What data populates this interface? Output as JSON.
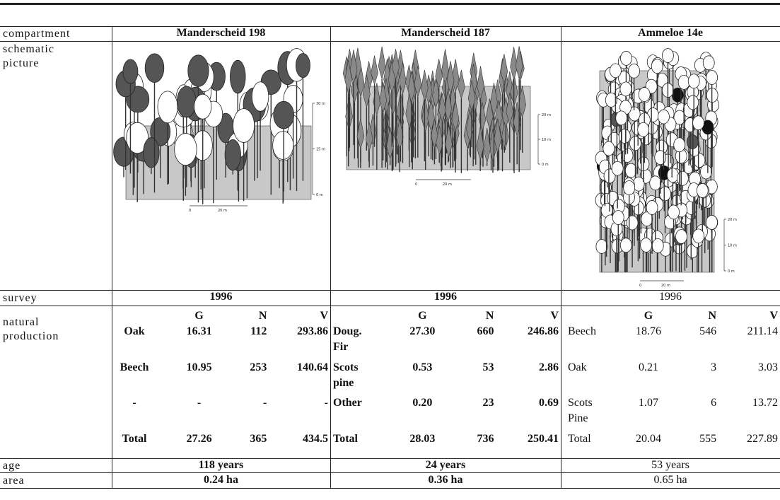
{
  "header": {
    "label": "compartment",
    "columns": [
      "Manderscheid 198",
      "Manderscheid 187",
      "Ammeloe 14e"
    ]
  },
  "picture": {
    "label": "schematic picture",
    "scales": [
      {
        "y": [
          "30 m",
          "15 m",
          "0 m"
        ],
        "x": [
          "0",
          "20 m"
        ]
      },
      {
        "y": [
          "20 m",
          "10 m",
          "0 m"
        ],
        "x": [
          "0",
          "20 m"
        ]
      },
      {
        "y": [
          "20 m",
          "10 m",
          "0 m"
        ],
        "x": [
          "0",
          "20 m"
        ]
      }
    ]
  },
  "survey": {
    "label": "survey",
    "values": [
      "1996",
      "1996",
      "1996"
    ]
  },
  "production": {
    "label": "natural production",
    "columns": [
      "G",
      "N",
      "V"
    ],
    "stands": [
      [
        [
          "Oak",
          "16.31",
          "112",
          "293.86"
        ],
        [
          "Beech",
          "10.95",
          "253",
          "140.64"
        ],
        [
          "-",
          "-",
          "-",
          "-"
        ],
        [
          "Total",
          "27.26",
          "365",
          "434.5"
        ]
      ],
      [
        [
          "Doug. Fir",
          "27.30",
          "660",
          "246.86"
        ],
        [
          "Scots pine",
          "0.53",
          "53",
          "2.86"
        ],
        [
          "Other",
          "0.20",
          "23",
          "0.69"
        ],
        [
          "Total",
          "28.03",
          "736",
          "250.41"
        ]
      ],
      [
        [
          "Beech",
          "18.76",
          "546",
          "211.14"
        ],
        [
          "Oak",
          "0.21",
          "3",
          "3.03"
        ],
        [
          "Scots Pine",
          "1.07",
          "6",
          "13.72"
        ],
        [
          "Total",
          "20.04",
          "555",
          "227.89"
        ]
      ]
    ]
  },
  "age": {
    "label": "age",
    "values": [
      "118 years",
      "24 years",
      "53 years"
    ]
  },
  "area": {
    "label": "area",
    "values": [
      "0.24 ha",
      "0.36 ha",
      "0.65 ha"
    ]
  }
}
